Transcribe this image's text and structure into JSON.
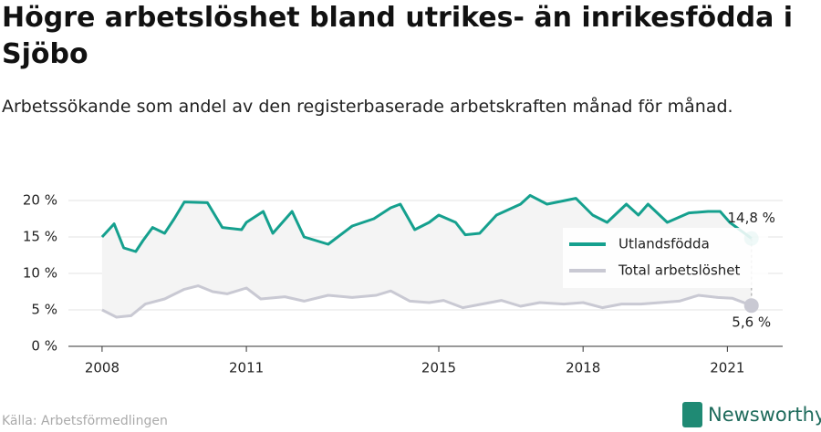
{
  "chart_data": {
    "type": "line",
    "title": "Högre arbetslöshet bland utrikes- än inrikesfödda i Sjöbo",
    "subtitle": "Arbetssökande som andel av den registerbaserade arbetskraften månad för månad.",
    "source": "Källa: Arbetsförmedlingen",
    "brand": "Newsworthy",
    "xlim": [
      2007.3,
      2022.15
    ],
    "xticks": [
      2008,
      2011,
      2015,
      2018,
      2021
    ],
    "ylim": [
      0,
      21
    ],
    "yticks": [
      {
        "value": 0,
        "label": "0 %"
      },
      {
        "value": 5,
        "label": "5 %"
      },
      {
        "value": 10,
        "label": "10 %"
      },
      {
        "value": 15,
        "label": "15 %"
      },
      {
        "value": 20,
        "label": "20 %"
      }
    ],
    "grid": true,
    "legend": "right",
    "series": [
      {
        "name": "Utlandsfödda",
        "color": "#15a08e",
        "x": [
          2008,
          2008.25,
          2008.45,
          2008.7,
          2008.85,
          2009.05,
          2009.3,
          2009.5,
          2009.71,
          2010.19,
          2010.5,
          2010.9,
          2011.0,
          2011.35,
          2011.55,
          2011.95,
          2012.2,
          2012.7,
          2013.2,
          2013.65,
          2014.0,
          2014.2,
          2014.5,
          2014.8,
          2015.0,
          2015.35,
          2015.55,
          2015.85,
          2016.2,
          2016.7,
          2016.9,
          2017.25,
          2017.85,
          2018.2,
          2018.5,
          2018.9,
          2019.15,
          2019.35,
          2019.75,
          2020.2,
          2020.6,
          2020.85,
          2021.05,
          2021.5
        ],
        "values": [
          15,
          16.8,
          13.5,
          13,
          14.5,
          16.3,
          15.5,
          17.5,
          19.8,
          19.7,
          16.3,
          16,
          17,
          18.5,
          15.5,
          18.5,
          15,
          14,
          16.5,
          17.5,
          19,
          19.5,
          16,
          17,
          18,
          17,
          15.3,
          15.5,
          18,
          19.5,
          20.7,
          19.5,
          20.3,
          18,
          17,
          19.5,
          18,
          19.5,
          17,
          18.3,
          18.5,
          18.5,
          17,
          14.8
        ],
        "value_labels": [
          null,
          null,
          null,
          null,
          null,
          null,
          null,
          null,
          null,
          null,
          null,
          null,
          null,
          null,
          null,
          null,
          null,
          null,
          null,
          null,
          null,
          null,
          null,
          null,
          null,
          null,
          null,
          null,
          null,
          null,
          null,
          null,
          null,
          null,
          null,
          null,
          null,
          null,
          null,
          null,
          null,
          null,
          null,
          "14,8 %"
        ]
      },
      {
        "name": "Total arbetslöshet",
        "color": "#c9c9d3",
        "x": [
          2008,
          2008.3,
          2008.6,
          2008.9,
          2009.3,
          2009.7,
          2010.0,
          2010.3,
          2010.6,
          2011.0,
          2011.3,
          2011.8,
          2012.2,
          2012.7,
          2013.2,
          2013.7,
          2014.0,
          2014.4,
          2014.8,
          2015.1,
          2015.5,
          2015.9,
          2016.3,
          2016.7,
          2017.1,
          2017.6,
          2018.0,
          2018.4,
          2018.8,
          2019.2,
          2019.6,
          2020.0,
          2020.4,
          2020.8,
          2021.1,
          2021.5
        ],
        "values": [
          5,
          4,
          4.2,
          5.8,
          6.5,
          7.8,
          8.3,
          7.5,
          7.2,
          8,
          6.5,
          6.8,
          6.2,
          7,
          6.7,
          7,
          7.6,
          6.2,
          6,
          6.3,
          5.3,
          5.8,
          6.3,
          5.5,
          6,
          5.8,
          6,
          5.3,
          5.8,
          5.8,
          6,
          6.2,
          7,
          6.7,
          6.6,
          5.6
        ],
        "value_labels": [
          null,
          null,
          null,
          null,
          null,
          null,
          null,
          null,
          null,
          null,
          null,
          null,
          null,
          null,
          null,
          null,
          null,
          null,
          null,
          null,
          null,
          null,
          null,
          null,
          null,
          null,
          null,
          null,
          null,
          null,
          null,
          null,
          null,
          null,
          null,
          "5,6 %"
        ]
      }
    ]
  }
}
